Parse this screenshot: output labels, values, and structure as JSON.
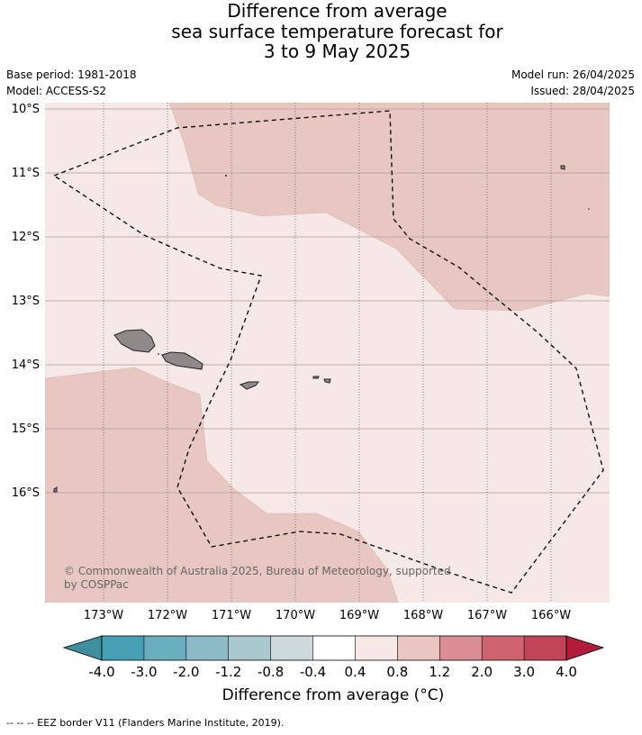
{
  "title": {
    "line1": "Difference from average",
    "line2": "sea surface temperature forecast for",
    "line3": "3 to 9 May 2025"
  },
  "meta": {
    "base_period": "Base period: 1981-2018",
    "model": "Model: ACCESS-S2",
    "model_run": "Model run: 26/04/2025",
    "issued": "Issued: 28/04/2025"
  },
  "map": {
    "lat_labels": [
      "10°S",
      "11°S",
      "12°S",
      "13°S",
      "14°S",
      "15°S",
      "16°S"
    ],
    "lon_labels": [
      "173°W",
      "172°W",
      "171°W",
      "170°W",
      "169°W",
      "168°W",
      "167°W",
      "166°W"
    ],
    "credit_line1": "© Commonwealth of Australia 2025, Bureau of Meteorology, supported",
    "credit_line2": "by COSPPac",
    "colors": {
      "anomaly_0_4_to_0_8": "#f5e8e6",
      "anomaly_0_8_to_1_2": "#e8c7c2",
      "land": "#8f8a89"
    }
  },
  "colorbar": {
    "tick_labels": [
      "-4.0",
      "-3.0",
      "-2.0",
      "-1.2",
      "-0.8",
      "-0.4",
      "0.4",
      "0.8",
      "1.2",
      "2.0",
      "3.0",
      "4.0"
    ],
    "colors": [
      "#3e8ea0",
      "#479fb3",
      "#6aafc0",
      "#8cbbc7",
      "#a9c9cf",
      "#cdd9da",
      "#ffffff",
      "#f5e8e6",
      "#e8c7c2",
      "#d88e94",
      "#cd6470",
      "#c14557",
      "#b01c3a"
    ],
    "title": "Difference from average (°C)"
  },
  "footer": {
    "legend": "--  --  -- EEZ border V11 (Flanders Marine Institute, 2019)."
  }
}
